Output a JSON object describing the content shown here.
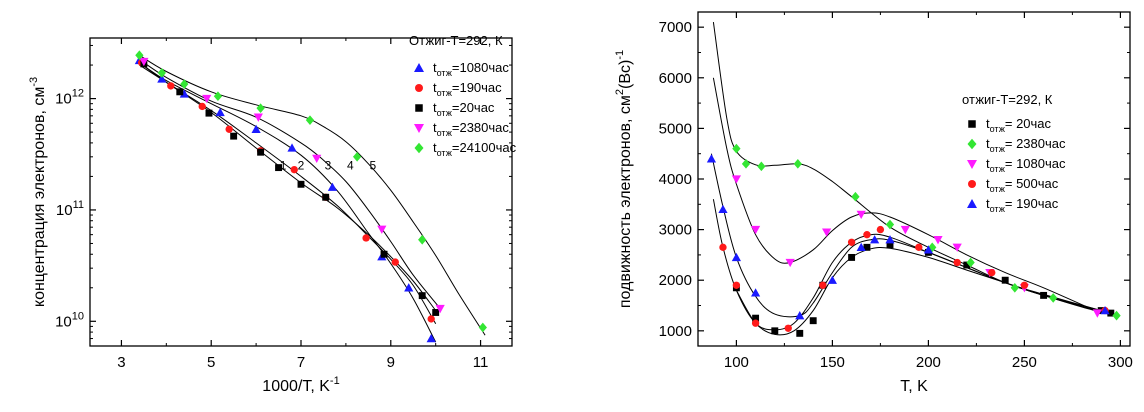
{
  "chart_data": [
    {
      "type": "scatter",
      "xlabel": "1000/T, K",
      "xlabel_sup": "-1",
      "ylabel": "концентрация электронов, см",
      "ylabel_sup": "-3",
      "yscale": "log",
      "xlim": [
        2.3,
        11.7
      ],
      "ylim": [
        6000000000.0,
        3500000000000.0
      ],
      "xticks": [
        3,
        5,
        7,
        9,
        11
      ],
      "yticks": [
        {
          "value": 10000000000.0,
          "base": "10",
          "exp": "10"
        },
        {
          "value": 100000000000.0,
          "base": "10",
          "exp": "11"
        },
        {
          "value": 1000000000000.0,
          "base": "10",
          "exp": "12"
        }
      ],
      "legend_title": "Отжиг-T=292, К",
      "legend_position": "top-right",
      "series": [
        {
          "name_sub": "отж",
          "name_rest": "=1080час",
          "marker": "triangle-up",
          "color": "#1a1aff",
          "x": [
            3.4,
            3.9,
            4.4,
            5.2,
            6.0,
            6.8,
            7.7,
            8.8,
            9.4,
            9.9
          ],
          "y": [
            2200000000000.0,
            1500000000000.0,
            1100000000000.0,
            750000000000.0,
            530000000000.0,
            360000000000.0,
            160000000000.0,
            38000000000.0,
            20000000000.0,
            7000000000.0
          ],
          "curve_x": [
            3.4,
            4.0,
            5.0,
            6.0,
            7.0,
            7.8,
            8.5,
            9.0,
            9.5,
            10.0
          ],
          "curve_y": [
            2100000000000.0,
            1450000000000.0,
            900000000000.0,
            560000000000.0,
            310000000000.0,
            150000000000.0,
            62000000000.0,
            33000000000.0,
            16000000000.0,
            6500000000.0
          ]
        },
        {
          "name_sub": "отж",
          "name_rest": "=190час",
          "marker": "circle",
          "color": "#ff1a1a",
          "x": [
            3.45,
            4.1,
            4.8,
            5.4,
            6.1,
            6.85,
            7.55,
            8.45,
            9.1,
            9.9
          ],
          "y": [
            2100000000000.0,
            1300000000000.0,
            850000000000.0,
            530000000000.0,
            340000000000.0,
            230000000000.0,
            130000000000.0,
            56000000000.0,
            34000000000.0,
            10500000000.0
          ],
          "curve_x": [
            3.4,
            4.0,
            5.0,
            6.0,
            7.0,
            7.8,
            8.5,
            9.0,
            9.5,
            10.0
          ],
          "curve_y": [
            2000000000000.0,
            1400000000000.0,
            780000000000.0,
            400000000000.0,
            200000000000.0,
            110000000000.0,
            58000000000.0,
            36000000000.0,
            21000000000.0,
            9500000000.0
          ]
        },
        {
          "name_sub": "отж",
          "name_rest": "=20час",
          "marker": "square",
          "color": "#000000",
          "x": [
            3.5,
            4.3,
            4.95,
            5.5,
            6.1,
            6.5,
            7.0,
            7.55,
            8.85,
            9.7,
            10.0
          ],
          "y": [
            2050000000000.0,
            1150000000000.0,
            740000000000.0,
            460000000000.0,
            330000000000.0,
            240000000000.0,
            170000000000.0,
            130000000000.0,
            40000000000.0,
            17000000000.0,
            12000000000.0
          ],
          "curve_x": [
            3.4,
            4.0,
            5.0,
            6.0,
            7.0,
            7.8,
            8.5,
            9.0,
            9.5,
            10.0
          ],
          "curve_y": [
            2100000000000.0,
            1400000000000.0,
            750000000000.0,
            360000000000.0,
            175000000000.0,
            105000000000.0,
            60000000000.0,
            38000000000.0,
            23000000000.0,
            12500000000.0
          ]
        },
        {
          "name_sub": "отж",
          "name_rest": "=2380час",
          "marker": "triangle-down",
          "color": "#ff1aff",
          "x": [
            3.5,
            4.9,
            6.05,
            7.35,
            8.8,
            10.1
          ],
          "y": [
            2150000000000.0,
            1000000000000.0,
            680000000000.0,
            290000000000.0,
            67000000000.0,
            13000000000.0
          ],
          "curve_x": [
            3.4,
            4.0,
            5.0,
            6.0,
            7.0,
            7.5,
            8.0,
            8.5,
            9.0,
            9.5,
            10.1
          ],
          "curve_y": [
            2250000000000.0,
            1550000000000.0,
            950000000000.0,
            680000000000.0,
            400000000000.0,
            280000000000.0,
            180000000000.0,
            100000000000.0,
            52000000000.0,
            26000000000.0,
            13000000000.0
          ]
        },
        {
          "name_sub": "отж",
          "name_rest": "=24100час",
          "marker": "diamond",
          "color": "#33e633",
          "x": [
            3.4,
            3.9,
            4.4,
            5.15,
            6.1,
            7.2,
            8.25,
            9.7,
            11.05
          ],
          "y": [
            2450000000000.0,
            1700000000000.0,
            1350000000000.0,
            1050000000000.0,
            820000000000.0,
            640000000000.0,
            300000000000.0,
            54000000000.0,
            8800000000.0
          ],
          "curve_x": [
            3.4,
            4.0,
            5.0,
            6.0,
            7.0,
            7.5,
            8.0,
            8.5,
            9.0,
            9.5,
            10.0,
            10.5,
            11.1
          ],
          "curve_y": [
            2450000000000.0,
            1750000000000.0,
            1150000000000.0,
            880000000000.0,
            700000000000.0,
            560000000000.0,
            410000000000.0,
            260000000000.0,
            150000000000.0,
            78000000000.0,
            39000000000.0,
            18000000000.0,
            7500000000.0
          ]
        }
      ],
      "annotations": [
        {
          "text": "1",
          "x": 6.6,
          "y": 230000000000.0
        },
        {
          "text": "2",
          "x": 7.0,
          "y": 230000000000.0
        },
        {
          "text": "3",
          "x": 7.6,
          "y": 230000000000.0
        },
        {
          "text": "4",
          "x": 8.1,
          "y": 230000000000.0
        },
        {
          "text": "5",
          "x": 8.6,
          "y": 230000000000.0
        }
      ]
    },
    {
      "type": "scatter",
      "xlabel": "T, K",
      "ylabel": "подвижность электронов, см",
      "ylabel_sup": "2",
      "ylabel_rest": "(Вс)",
      "ylabel_sup2": "-1",
      "xlim": [
        80,
        305
      ],
      "ylim": [
        700,
        7300
      ],
      "xticks": [
        100,
        150,
        200,
        250,
        300
      ],
      "yticks": [
        1000,
        2000,
        3000,
        4000,
        5000,
        6000,
        7000
      ],
      "legend_title": "отжиг-T=292, К",
      "legend_position": "top-right",
      "series": [
        {
          "name_sub": "отж",
          "name_rest": "= 20час",
          "marker": "square",
          "color": "#000000",
          "x": [
            100,
            110,
            120,
            133,
            140,
            145,
            160,
            168,
            180,
            200,
            220,
            240,
            260,
            290,
            295
          ],
          "y": [
            1850,
            1250,
            1000,
            950,
            1200,
            1900,
            2450,
            2650,
            2700,
            2550,
            2300,
            2000,
            1700,
            1400,
            1350
          ],
          "curve_x": [
            100,
            110,
            120,
            130,
            140,
            150,
            160,
            170,
            180,
            200,
            220,
            240,
            260,
            280,
            297
          ],
          "curve_y": [
            1800,
            1150,
            930,
            1000,
            1400,
            2050,
            2450,
            2620,
            2630,
            2450,
            2200,
            1950,
            1700,
            1470,
            1300
          ]
        },
        {
          "name_sub": "отж",
          "name_rest": "= 2380час",
          "marker": "diamond",
          "color": "#33e633",
          "x": [
            100,
            105,
            113,
            132,
            162,
            180,
            202,
            222,
            245,
            265,
            298
          ],
          "y": [
            4600,
            4300,
            4250,
            4300,
            3650,
            3100,
            2650,
            2350,
            1850,
            1650,
            1300
          ],
          "curve_x": [
            88,
            95,
            100,
            110,
            120,
            132,
            140,
            150,
            160,
            180,
            200,
            220,
            240,
            260,
            280,
            298
          ],
          "curve_y": [
            7100,
            5200,
            4550,
            4280,
            4270,
            4300,
            4200,
            3950,
            3650,
            3050,
            2650,
            2300,
            1950,
            1700,
            1480,
            1300
          ]
        },
        {
          "name_sub": "отж",
          "name_rest": "= 1080час",
          "marker": "triangle-down",
          "color": "#ff1aff",
          "x": [
            100,
            110,
            128,
            147,
            165,
            188,
            205,
            215,
            232,
            250,
            288
          ],
          "y": [
            4000,
            3000,
            2350,
            2950,
            3300,
            3000,
            2800,
            2650,
            2150,
            1850,
            1350
          ],
          "curve_x": [
            88,
            95,
            100,
            110,
            120,
            128,
            140,
            150,
            160,
            170,
            180,
            200,
            220,
            240,
            260,
            288
          ],
          "curve_y": [
            6000,
            4600,
            3900,
            2900,
            2420,
            2350,
            2600,
            2980,
            3250,
            3330,
            3250,
            2900,
            2500,
            2150,
            1850,
            1380
          ]
        },
        {
          "name_sub": "отж",
          "name_rest": "= 500час",
          "marker": "circle",
          "color": "#ff1a1a",
          "x": [
            93,
            100,
            110,
            127,
            145,
            160,
            168,
            175,
            195,
            215,
            233,
            250,
            292
          ],
          "y": [
            2650,
            1900,
            1150,
            1050,
            1900,
            2750,
            2900,
            3000,
            2650,
            2350,
            2150,
            1900,
            1400
          ],
          "curve_x": [
            88,
            93,
            100,
            110,
            120,
            130,
            140,
            150,
            160,
            170,
            180,
            200,
            220,
            240,
            260,
            292
          ],
          "curve_y": [
            3600,
            2650,
            1800,
            1150,
            1020,
            1150,
            1650,
            2350,
            2750,
            2900,
            2850,
            2550,
            2250,
            1950,
            1720,
            1380
          ]
        },
        {
          "name_sub": "отж",
          "name_rest": "= 190час",
          "marker": "triangle-up",
          "color": "#1a1aff",
          "x": [
            87,
            93,
            100,
            110,
            133,
            150,
            165,
            172,
            180,
            200,
            292
          ],
          "y": [
            4400,
            3400,
            2450,
            1750,
            1300,
            2000,
            2650,
            2800,
            2800,
            2600,
            1400
          ],
          "curve_x": [
            87,
            93,
            100,
            110,
            120,
            133,
            140,
            150,
            160,
            170,
            180,
            200,
            220,
            240,
            260,
            292
          ],
          "curve_y": [
            4500,
            3450,
            2450,
            1680,
            1330,
            1300,
            1550,
            2150,
            2650,
            2800,
            2790,
            2550,
            2250,
            1950,
            1700,
            1380
          ]
        }
      ]
    }
  ]
}
